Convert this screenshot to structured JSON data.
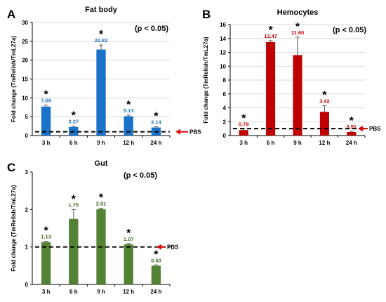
{
  "figure": {
    "ylabel": "Fold change (TmRelish/TmL27a)",
    "significance": "(p < 0.05)",
    "reference_label": "PBS",
    "star": "*"
  },
  "chart_data": [
    {
      "type": "bar",
      "panel": "A",
      "title": "Fat body",
      "categories": [
        "3 h",
        "6 h",
        "9 h",
        "12 h",
        "24 h"
      ],
      "series": [
        {
          "values": [
            7.68,
            2.27,
            22.82,
            5.13,
            2.14
          ],
          "errors": [
            0.4,
            0.2,
            1.2,
            0.3,
            0.2
          ],
          "labels": [
            "7.68",
            "2.27",
            "22.82",
            "5.13",
            "2.14"
          ]
        }
      ],
      "yticks": [
        "0",
        "5",
        "10",
        "15",
        "20",
        "25",
        "30"
      ],
      "ylim": [
        0,
        30
      ],
      "reference": 1,
      "bar_color": "#1a73c9",
      "label_color": "#1f6fbf",
      "grid": true
    },
    {
      "type": "bar",
      "panel": "B",
      "title": "Hemocytes",
      "categories": [
        "3 h",
        "6 h",
        "9 h",
        "12 h",
        "24 h"
      ],
      "series": [
        {
          "values": [
            0.79,
            13.47,
            11.6,
            3.42,
            0.51
          ],
          "errors": [
            0.15,
            0.2,
            2.6,
            0.9,
            0.1
          ],
          "labels": [
            "0.79",
            "13.47",
            "11.60",
            "3.42",
            "0.51"
          ]
        }
      ],
      "yticks": [
        "0",
        "2",
        "4",
        "6",
        "8",
        "10",
        "12",
        "14",
        "16"
      ],
      "ylim": [
        0,
        16
      ],
      "reference": 1,
      "bar_color": "#c00000",
      "label_color": "#c00000",
      "grid": true
    },
    {
      "type": "bar",
      "panel": "C",
      "title": "Gut",
      "categories": [
        "3 h",
        "6 h",
        "9 h",
        "12 h",
        "24 h"
      ],
      "series": [
        {
          "values": [
            1.13,
            1.75,
            2.01,
            1.07,
            0.5
          ],
          "errors": [
            0.02,
            0.25,
            0.02,
            0.02,
            0.02
          ],
          "labels": [
            "1.13",
            "1.75",
            "2.01",
            "1.07",
            "0.50"
          ]
        }
      ],
      "yticks": [
        "0",
        "1",
        "2",
        "3"
      ],
      "ylim": [
        0,
        3
      ],
      "reference": 1,
      "bar_color": "#548235",
      "label_color": "#3f6a24",
      "grid": false
    }
  ]
}
